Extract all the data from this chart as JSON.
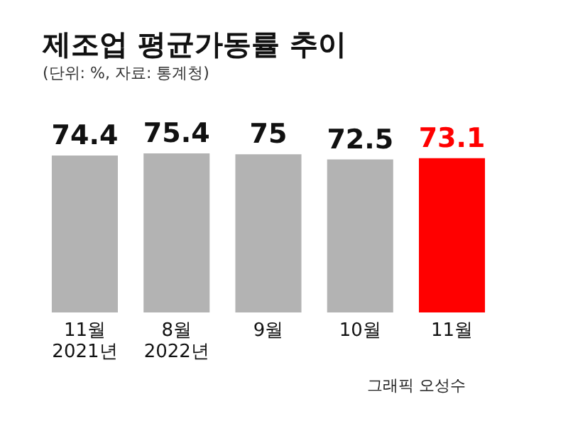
{
  "chart_data": {
    "type": "bar",
    "title": "제조업 평균가동률 추이",
    "subtitle": "(단위: %, 자료: 통계청)",
    "categories": [
      "11월\n2021년",
      "8월\n2022년",
      "9월",
      "10월",
      "11월"
    ],
    "values": [
      74.4,
      75.4,
      75,
      72.5,
      73.1
    ],
    "colors": [
      "#b3b3b3",
      "#b3b3b3",
      "#b3b3b3",
      "#b3b3b3",
      "#ff0000"
    ],
    "data_labels": true,
    "annotations": [
      "그래픽 오성수"
    ]
  }
}
